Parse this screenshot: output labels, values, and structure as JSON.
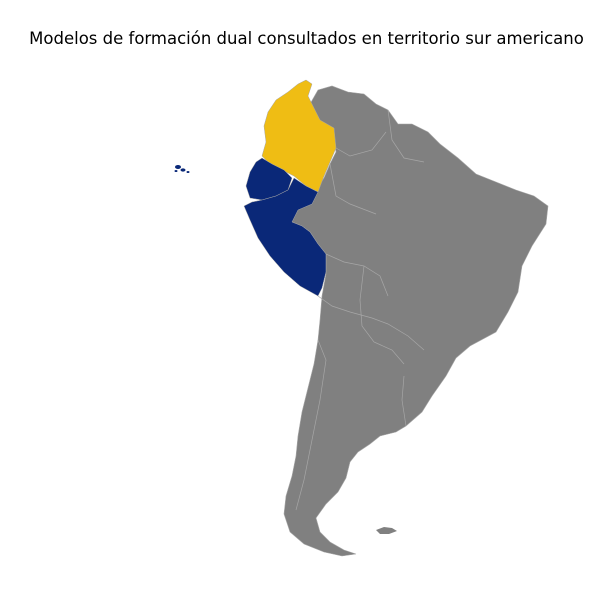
{
  "title": "Modelos de formación dual consultados en territorio sur americano",
  "map": {
    "region": "South America",
    "colors": {
      "default_country": "#808080",
      "border": "#a6a6a6",
      "background": "#ffffff"
    },
    "highlighted_countries": [
      {
        "country": "Colombia",
        "color": "#efbd14"
      },
      {
        "country": "Ecuador",
        "color": "#0a2878"
      },
      {
        "country": "Peru",
        "color": "#0a2878"
      }
    ]
  }
}
